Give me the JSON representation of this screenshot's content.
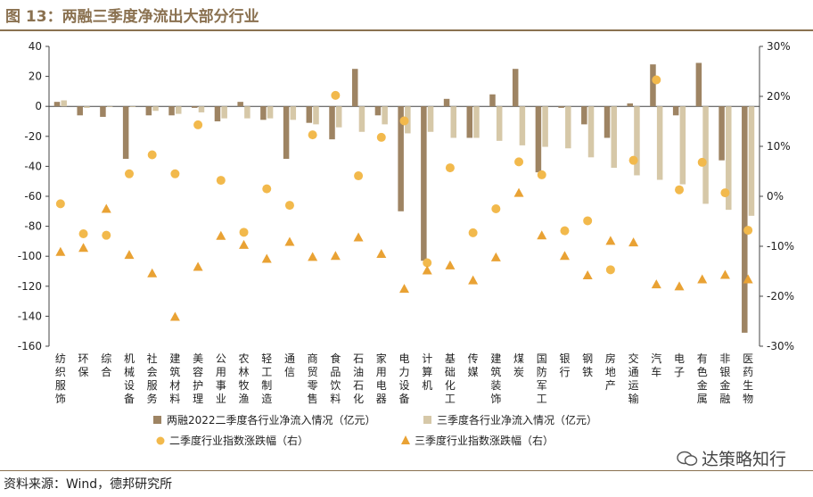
{
  "header": {
    "title": "图 13：两融三季度净流出大部分行业"
  },
  "footer": {
    "source": "资料来源：Wind，德邦研究所",
    "watermark": "达策略知行"
  },
  "colors": {
    "bar_q2": "#9e8463",
    "bar_q3": "#d6c8a8",
    "dot_q2": "#f2b94c",
    "tri_q3": "#e9a234",
    "accent": "#8a7150"
  },
  "chart_data": {
    "type": "bar",
    "title": "两融三季度净流出大部分行业",
    "categories": [
      "纺织服饰",
      "环保",
      "综合",
      "机械设备",
      "社会服务",
      "建筑材料",
      "美容护理",
      "公用事业",
      "农林牧渔",
      "轻工制造",
      "通信",
      "商贸零售",
      "食品饮料",
      "石油石化",
      "家用电器",
      "电力设备",
      "计算机",
      "基础化工",
      "传媒",
      "建筑装饰",
      "煤炭",
      "国防军工",
      "银行",
      "钢铁",
      "房地产",
      "交通运输",
      "汽车",
      "电子",
      "有色金属",
      "非银金融",
      "医药生物"
    ],
    "y_left": {
      "min": -160,
      "max": 40,
      "ticks": [
        40,
        20,
        0,
        -20,
        -40,
        -60,
        -80,
        -100,
        -120,
        -140,
        -160
      ]
    },
    "y_right": {
      "min": -30,
      "max": 30,
      "ticks": [
        "30%",
        "20%",
        "10%",
        "0%",
        "-10%",
        "-20%",
        "-30%"
      ],
      "tick_values": [
        30,
        20,
        10,
        0,
        -10,
        -20,
        -30
      ]
    },
    "series": [
      {
        "name": "两融2022二季度各行业净流入情况（亿元）",
        "type": "bar",
        "axis": "left",
        "values": [
          3,
          -6,
          -7,
          -35,
          -6,
          -6,
          -1,
          -10,
          3,
          -9,
          -35,
          -11,
          -22,
          25,
          -6,
          -70,
          -103,
          5,
          -21,
          8,
          25,
          -44,
          -1,
          -12,
          -21,
          2,
          28,
          -6,
          29,
          -36,
          -151
        ]
      },
      {
        "name": "三季度各行业净流入情况（亿元）",
        "type": "bar",
        "axis": "left",
        "values": [
          4,
          -1,
          0,
          0,
          -3,
          -5,
          -4,
          -8,
          -8,
          -8,
          -9,
          -12,
          -14,
          -17,
          -12,
          -18,
          -17,
          -21,
          -21,
          -23,
          -26,
          -27,
          -28,
          -34,
          -41,
          -46,
          -49,
          -52,
          -65,
          -69,
          -73
        ]
      },
      {
        "name": "二季度行业指数涨跌幅（右）",
        "type": "scatter",
        "marker": "circle",
        "axis": "right",
        "values": [
          -1.5,
          -7.5,
          -7.8,
          4.5,
          8.3,
          4.5,
          14.3,
          3.2,
          -7.2,
          1.5,
          -1.8,
          12.3,
          20.2,
          4.1,
          11.8,
          15.1,
          -13.3,
          5.7,
          -7.3,
          -2.5,
          6.9,
          4.3,
          -6.9,
          -4.9,
          -14.7,
          7.2,
          23.3,
          1.3,
          6.8,
          0.7,
          -6.8
        ]
      },
      {
        "name": "三季度行业指数涨跌幅（右）",
        "type": "scatter",
        "marker": "triangle",
        "axis": "right",
        "values": [
          -11.2,
          -10.4,
          -2.6,
          -11.8,
          -15.5,
          -24.2,
          -14.2,
          -8.0,
          -9.8,
          -12.6,
          -9.2,
          -12.2,
          -12.0,
          -8.3,
          -11.6,
          -18.6,
          -14.9,
          -13.9,
          -16.9,
          -12.3,
          0.6,
          -7.9,
          -12.0,
          -15.9,
          -9.0,
          -9.3,
          -17.7,
          -18.1,
          -16.7,
          -15.8,
          -16.7
        ]
      }
    ]
  }
}
